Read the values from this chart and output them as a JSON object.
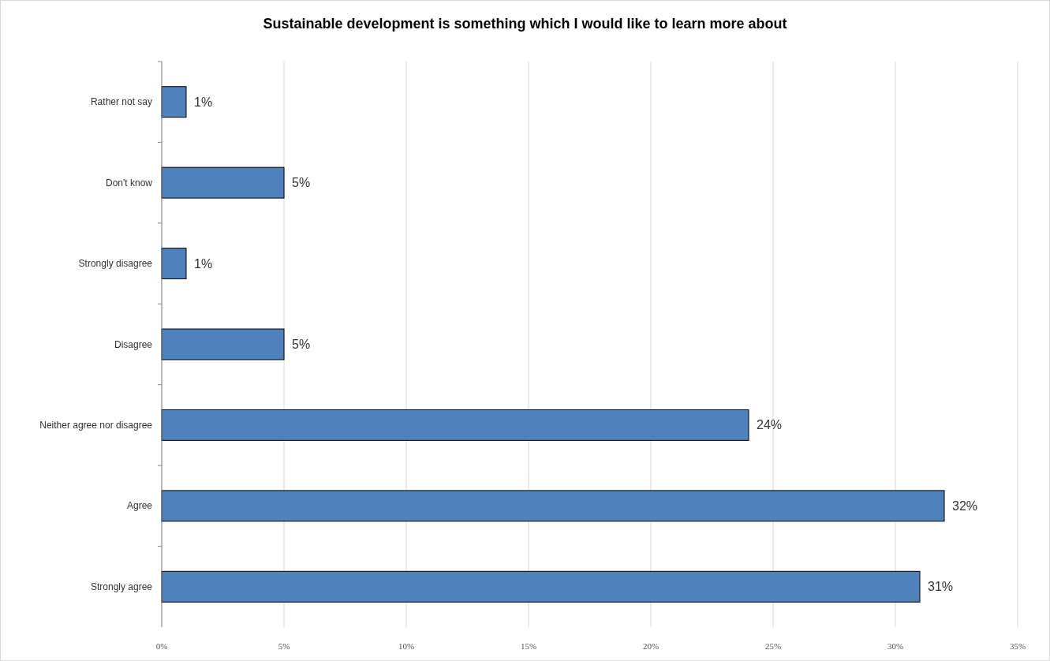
{
  "chart_data": {
    "type": "bar",
    "orientation": "horizontal",
    "title": "Sustainable development is something which I would like to learn more about",
    "categories": [
      "Rather not say",
      "Don't know",
      "Strongly disagree",
      "Disagree",
      "Neither agree nor disagree",
      "Agree",
      "Strongly agree"
    ],
    "values": [
      1,
      5,
      1,
      5,
      24,
      32,
      31
    ],
    "value_labels": [
      "1%",
      "5%",
      "1%",
      "5%",
      "24%",
      "32%",
      "31%"
    ],
    "color": "#4f81bd",
    "xlim": [
      0,
      35
    ],
    "xticks": [
      {
        "value": 0,
        "label": "0%"
      },
      {
        "value": 5,
        "label": "5%"
      },
      {
        "value": 10,
        "label": "10%"
      },
      {
        "value": 15,
        "label": "15%"
      },
      {
        "value": 20,
        "label": "20%"
      },
      {
        "value": 25,
        "label": "25%"
      },
      {
        "value": 30,
        "label": "30%"
      },
      {
        "value": 35,
        "label": "35%"
      }
    ],
    "grid": "x"
  }
}
